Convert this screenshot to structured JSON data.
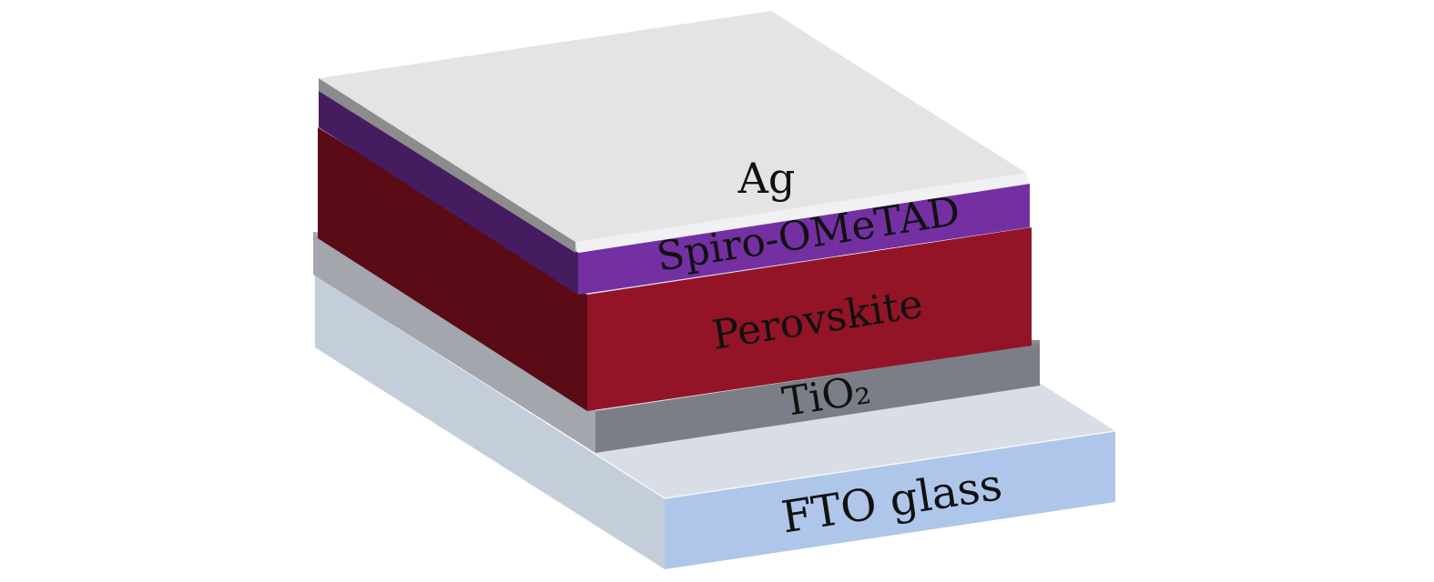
{
  "diagram": {
    "layers": [
      {
        "id": "fto",
        "label": "FTO glass",
        "top_color": "#d9dde6",
        "front_color": "#aec6ea",
        "side_color": "#c4ceda"
      },
      {
        "id": "tio2",
        "label": "TiO₂",
        "top_color": "#a3a6ad",
        "front_color": "#7b7e86",
        "side_color": "#a3a6ad",
        "end_color": "#8b8b8b"
      },
      {
        "id": "perovskite",
        "label": "Perovskite",
        "front_color": "#931426",
        "side_color": "#5a0b16"
      },
      {
        "id": "spiro",
        "label": "Spiro-OMeTAD",
        "front_color": "#7430a2",
        "side_color": "#461c61"
      },
      {
        "id": "ag",
        "label": "Ag",
        "top_color": "#e4e4e4",
        "front_color": "#f1f0f2",
        "side_color": "#8c8c8c"
      }
    ]
  }
}
